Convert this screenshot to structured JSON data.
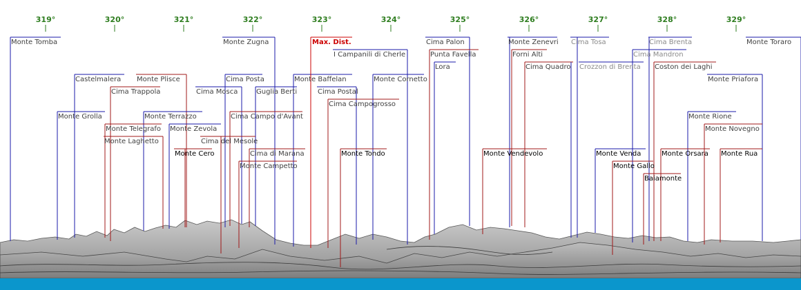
{
  "colors": {
    "blue": "#1a1aa8",
    "red": "#a01818",
    "label_dark": "#000000",
    "label_mid": "#404040",
    "label_light": "#8a8a8a",
    "maxdist": "#cc0000",
    "degree": "#2e7d1f",
    "water": "#0b96cc"
  },
  "degree_ticks": [
    "319°",
    "320°",
    "321°",
    "322°",
    "323°",
    "324°",
    "325°",
    "326°",
    "327°",
    "328°",
    "329°"
  ],
  "max_distance_label": "Max. Dist.",
  "peaks": [
    {
      "name": "Monte Tomba",
      "line": "blue",
      "tone": "mid"
    },
    {
      "name": "Monte Zugna",
      "line": "blue",
      "tone": "mid"
    },
    {
      "name": "Cima Palon",
      "line": "blue",
      "tone": "mid"
    },
    {
      "name": "Monte Zenevri",
      "line": "blue",
      "tone": "mid"
    },
    {
      "name": "Cima Tosa",
      "line": "blue",
      "tone": "light"
    },
    {
      "name": "Cima Brenta",
      "line": "blue",
      "tone": "light"
    },
    {
      "name": "Monte Toraro",
      "line": "blue",
      "tone": "mid"
    },
    {
      "name": "I Campanili di Cherle",
      "line": "blue",
      "tone": "mid"
    },
    {
      "name": "Punta Favella",
      "line": "red",
      "tone": "mid"
    },
    {
      "name": "Forni Alti",
      "line": "red",
      "tone": "mid"
    },
    {
      "name": "Cima Mandron",
      "line": "blue",
      "tone": "light"
    },
    {
      "name": "Lora",
      "line": "blue",
      "tone": "mid"
    },
    {
      "name": "Cima Quadro",
      "line": "red",
      "tone": "mid"
    },
    {
      "name": "Crozzon di Brenta",
      "line": "blue",
      "tone": "light"
    },
    {
      "name": "Coston dei Laghi",
      "line": "red",
      "tone": "mid"
    },
    {
      "name": "Castelmalera",
      "line": "blue",
      "tone": "mid"
    },
    {
      "name": "Monte Plisce",
      "line": "red",
      "tone": "mid"
    },
    {
      "name": "Cima Posta",
      "line": "blue",
      "tone": "mid"
    },
    {
      "name": "Monte Baffelan",
      "line": "blue",
      "tone": "mid"
    },
    {
      "name": "Monte Cornetto",
      "line": "blue",
      "tone": "mid"
    },
    {
      "name": "Monte Priafora",
      "line": "blue",
      "tone": "mid"
    },
    {
      "name": "Cima Trappola",
      "line": "red",
      "tone": "mid"
    },
    {
      "name": "Cima Mosca",
      "line": "blue",
      "tone": "mid"
    },
    {
      "name": "Guglia Berti",
      "line": "blue",
      "tone": "mid"
    },
    {
      "name": "Cima Postal",
      "line": "blue",
      "tone": "mid"
    },
    {
      "name": "Cima Campogrosso",
      "line": "red",
      "tone": "mid"
    },
    {
      "name": "Monte Grolla",
      "line": "blue",
      "tone": "mid"
    },
    {
      "name": "Monte Terrazzo",
      "line": "blue",
      "tone": "mid"
    },
    {
      "name": "Cima Campo d'Avant",
      "line": "red",
      "tone": "mid"
    },
    {
      "name": "Monte Rione",
      "line": "blue",
      "tone": "mid"
    },
    {
      "name": "Monte Telegrafo",
      "line": "red",
      "tone": "mid"
    },
    {
      "name": "Monte Zevola",
      "line": "blue",
      "tone": "mid"
    },
    {
      "name": "Monte Novegno",
      "line": "red",
      "tone": "mid"
    },
    {
      "name": "Monte Laghetto",
      "line": "red",
      "tone": "mid"
    },
    {
      "name": "Cima del Mesole",
      "line": "red",
      "tone": "mid"
    },
    {
      "name": "Monte Cero",
      "line": "red",
      "tone": "dark"
    },
    {
      "name": "Cima di Marana",
      "line": "red",
      "tone": "mid"
    },
    {
      "name": "Monte Tondo",
      "line": "red",
      "tone": "dark"
    },
    {
      "name": "Monte Vendevolo",
      "line": "red",
      "tone": "dark"
    },
    {
      "name": "Monte Venda",
      "line": "blue",
      "tone": "dark"
    },
    {
      "name": "Monte Orsara",
      "line": "red",
      "tone": "dark"
    },
    {
      "name": "Monte Rua",
      "line": "red",
      "tone": "dark"
    },
    {
      "name": "Monte Campetto",
      "line": "red",
      "tone": "mid"
    },
    {
      "name": "Monte Gallo",
      "line": "red",
      "tone": "dark"
    },
    {
      "name": "Baiamonte",
      "line": "red",
      "tone": "dark"
    }
  ]
}
